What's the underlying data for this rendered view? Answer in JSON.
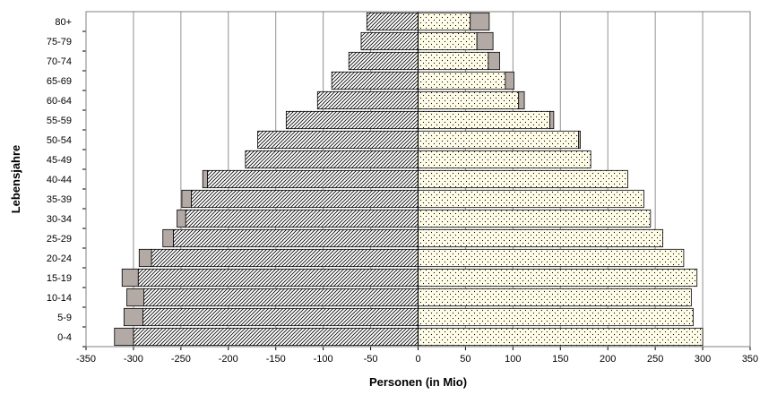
{
  "chart_data": {
    "type": "bar",
    "orientation": "horizontal",
    "stacked": true,
    "title": "",
    "xlabel": "Personen (in Mio)",
    "ylabel": "Lebensjahre",
    "xlim": [
      -350,
      350
    ],
    "xticks": [
      -350,
      -300,
      -250,
      -200,
      -150,
      -100,
      -50,
      0,
      50,
      100,
      150,
      200,
      250,
      300,
      350
    ],
    "grid": "vertical",
    "legend": "none",
    "categories": [
      "0-4",
      "5-9",
      "10-14",
      "15-19",
      "20-24",
      "25-29",
      "30-34",
      "35-39",
      "40-44",
      "45-49",
      "50-54",
      "55-59",
      "60-64",
      "65-69",
      "70-74",
      "75-79",
      "80+"
    ],
    "series": [
      {
        "side": "left",
        "layer": "base",
        "pattern": "diagonal-hatch",
        "values": [
          -300,
          -290,
          -289,
          -295,
          -281,
          -258,
          -245,
          -239,
          -222,
          -182,
          -169,
          -139,
          -106,
          -91,
          -73,
          -60,
          -54
        ]
      },
      {
        "side": "left",
        "layer": "overlay",
        "pattern": "solid-gray",
        "values": [
          -20,
          -20,
          -18,
          -17,
          -13,
          -11,
          -9,
          -10,
          -5,
          0,
          0,
          0,
          0,
          0,
          0,
          0,
          0
        ]
      },
      {
        "side": "right",
        "layer": "base",
        "pattern": "dotted",
        "values": [
          300,
          290,
          288,
          294,
          280,
          258,
          245,
          238,
          221,
          182,
          169,
          139,
          106,
          92,
          74,
          62,
          55
        ]
      },
      {
        "side": "right",
        "layer": "overlay",
        "pattern": "solid-gray",
        "values": [
          0,
          0,
          0,
          0,
          0,
          0,
          0,
          0,
          0,
          0,
          2,
          4,
          6,
          9,
          12,
          17,
          20
        ]
      }
    ],
    "colors": {
      "background": "#ffffff",
      "plot_border": "#808080",
      "gridline": "#909090",
      "bar_base_fill": "#ffffff",
      "bar_overlay_fill": "#b3aaa6",
      "bar_stroke": "#000000"
    }
  }
}
